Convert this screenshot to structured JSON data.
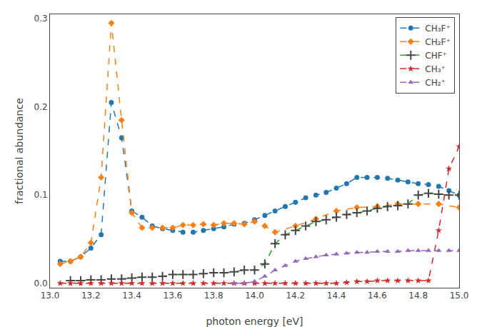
{
  "chart_data": {
    "type": "line",
    "xlabel": "photon energy [eV]",
    "ylabel": "fractional abundance",
    "xlim": [
      13.0,
      15.0
    ],
    "ylim": [
      -0.005,
      0.305
    ],
    "xticks": [
      {
        "value": 13.0,
        "label": "13.0"
      },
      13.2,
      13.4,
      13.6,
      13.8,
      {
        "value": 14.0,
        "label": "14.0"
      },
      14.2,
      14.4,
      14.6,
      14.8,
      {
        "value": 15.0,
        "label": "15.0"
      }
    ],
    "yticks": [
      {
        "value": 0.0,
        "label": "0.0"
      },
      0.1,
      0.2,
      0.3
    ],
    "grid": false,
    "legend": "upper right",
    "series": [
      {
        "name": "CH₃F⁺",
        "marker": "circle",
        "line_style": "dashed",
        "x": [
          13.05,
          13.1,
          13.15,
          13.2,
          13.25,
          13.3,
          13.35,
          13.4,
          13.45,
          13.5,
          13.55,
          13.6,
          13.65,
          13.7,
          13.75,
          13.8,
          13.85,
          13.9,
          13.95,
          14.0,
          14.05,
          14.1,
          14.15,
          14.2,
          14.25,
          14.3,
          14.35,
          14.4,
          14.45,
          14.5,
          14.55,
          14.6,
          14.65,
          14.7,
          14.75,
          14.8,
          14.85,
          14.9,
          14.95,
          15.0
        ],
        "values": [
          0.025,
          0.025,
          0.03,
          0.04,
          0.055,
          0.205,
          0.165,
          0.082,
          0.075,
          0.065,
          0.062,
          0.06,
          0.058,
          0.058,
          0.06,
          0.062,
          0.064,
          0.067,
          0.068,
          0.072,
          0.077,
          0.082,
          0.087,
          0.092,
          0.097,
          0.1,
          0.103,
          0.108,
          0.113,
          0.12,
          0.12,
          0.12,
          0.119,
          0.117,
          0.115,
          0.113,
          0.112,
          0.11,
          0.105,
          0.1
        ]
      },
      {
        "name": "CH₂F⁺",
        "marker": "diamond",
        "line_style": "dashed",
        "x": [
          13.05,
          13.1,
          13.15,
          13.2,
          13.25,
          13.3,
          13.35,
          13.4,
          13.45,
          13.5,
          13.55,
          13.6,
          13.65,
          13.7,
          13.75,
          13.8,
          13.85,
          13.9,
          13.95,
          14.0,
          14.05,
          14.1,
          14.2,
          14.3,
          14.4,
          14.5,
          14.6,
          14.7,
          14.8,
          14.9,
          15.0
        ],
        "values": [
          0.022,
          0.025,
          0.03,
          0.046,
          0.12,
          0.295,
          0.185,
          0.08,
          0.063,
          0.063,
          0.063,
          0.063,
          0.066,
          0.066,
          0.067,
          0.066,
          0.068,
          0.068,
          0.067,
          0.07,
          0.065,
          0.058,
          0.065,
          0.073,
          0.082,
          0.086,
          0.087,
          0.09,
          0.09,
          0.09,
          0.086
        ]
      },
      {
        "name": "CHF⁺",
        "marker": "plus",
        "line_style": "dashed",
        "x": [
          13.1,
          13.15,
          13.2,
          13.25,
          13.3,
          13.35,
          13.4,
          13.45,
          13.5,
          13.55,
          13.6,
          13.65,
          13.7,
          13.75,
          13.8,
          13.85,
          13.9,
          13.95,
          14.0,
          14.05,
          14.1,
          14.15,
          14.2,
          14.25,
          14.3,
          14.35,
          14.4,
          14.45,
          14.5,
          14.55,
          14.6,
          14.65,
          14.7,
          14.75,
          14.8,
          14.85,
          14.9,
          14.95,
          15.0
        ],
        "values": [
          0.003,
          0.003,
          0.004,
          0.004,
          0.005,
          0.005,
          0.006,
          0.007,
          0.007,
          0.008,
          0.01,
          0.01,
          0.01,
          0.011,
          0.012,
          0.012,
          0.013,
          0.015,
          0.015,
          0.022,
          0.045,
          0.055,
          0.06,
          0.065,
          0.07,
          0.072,
          0.075,
          0.078,
          0.08,
          0.082,
          0.085,
          0.087,
          0.088,
          0.09,
          0.1,
          0.102,
          0.101,
          0.1,
          0.1
        ]
      },
      {
        "name": "CH₃⁺",
        "marker": "star",
        "line_style": "dashed",
        "x": [
          13.05,
          13.1,
          13.15,
          13.2,
          13.25,
          13.3,
          13.35,
          13.4,
          13.45,
          13.5,
          13.55,
          13.6,
          13.65,
          13.7,
          13.75,
          13.8,
          13.85,
          13.9,
          13.95,
          14.0,
          14.05,
          14.1,
          14.15,
          14.2,
          14.25,
          14.3,
          14.35,
          14.4,
          14.45,
          14.5,
          14.55,
          14.6,
          14.65,
          14.7,
          14.75,
          14.8,
          14.85,
          14.9,
          14.95,
          15.0
        ],
        "values": [
          0.0,
          0.0,
          0.0,
          0.0,
          0.0,
          0.0,
          0.0,
          0.0,
          0.0,
          0.0,
          0.0,
          0.0,
          0.0,
          0.0,
          0.0,
          0.0,
          0.0,
          0.0,
          0.0,
          0.0,
          0.0,
          0.0,
          0.0,
          0.0,
          0.0,
          0.0,
          0.0,
          0.0,
          0.001,
          0.002,
          0.002,
          0.003,
          0.003,
          0.003,
          0.003,
          0.003,
          0.003,
          0.06,
          0.13,
          0.155
        ]
      },
      {
        "name": "CH₂⁺",
        "marker": "triangle",
        "line_style": "dashed",
        "x": [
          13.9,
          13.95,
          14.0,
          14.05,
          14.1,
          14.15,
          14.2,
          14.25,
          14.3,
          14.35,
          14.4,
          14.45,
          14.5,
          14.55,
          14.6,
          14.65,
          14.7,
          14.75,
          14.8,
          14.85,
          14.9,
          14.95,
          15.0
        ],
        "values": [
          0.0,
          0.0,
          0.002,
          0.008,
          0.015,
          0.02,
          0.025,
          0.028,
          0.03,
          0.032,
          0.033,
          0.034,
          0.035,
          0.035,
          0.036,
          0.036,
          0.036,
          0.037,
          0.037,
          0.037,
          0.037,
          0.037,
          0.037
        ]
      }
    ]
  }
}
